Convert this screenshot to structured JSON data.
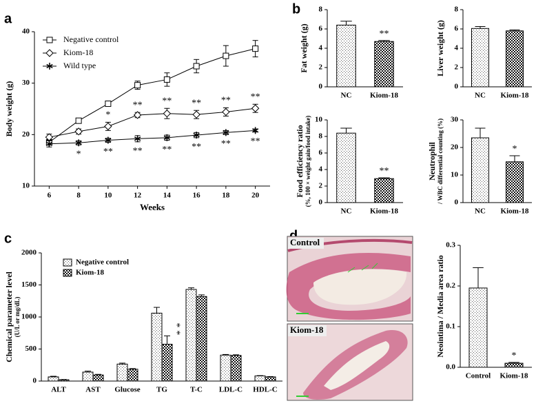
{
  "panel_labels": [
    "a",
    "b",
    "c",
    "d"
  ],
  "images": [
    {
      "label": "Control"
    },
    {
      "label": "Kiom-18"
    }
  ],
  "chart_data": [
    {
      "type": "line",
      "ylabel": [
        "Body weight (g)"
      ],
      "xlabel": "Weeks",
      "x": [
        6,
        8,
        10,
        12,
        14,
        16,
        18,
        20
      ],
      "xlim": [
        5,
        21
      ],
      "xticks": [
        6,
        8,
        10,
        12,
        14,
        16,
        18,
        20
      ],
      "ylim": [
        10,
        40
      ],
      "yticks": [
        10,
        20,
        30,
        40
      ],
      "legend": "upper left",
      "series": [
        {
          "name": "Negative control",
          "marker": "square",
          "color": "#000000",
          "values": [
            18.5,
            22.7,
            26,
            29.6,
            30.7,
            33.3,
            35.3,
            36.7
          ],
          "errors": [
            0.5,
            0.4,
            0.5,
            0.8,
            1.3,
            1.3,
            2,
            1.6
          ]
        },
        {
          "name": "Kiom-18",
          "marker": "diamond",
          "color": "#000000",
          "values": [
            19.5,
            20.6,
            21.6,
            23.8,
            24.1,
            23.9,
            24.4,
            25.1
          ],
          "errors": [
            0.6,
            0.5,
            0.8,
            0.5,
            1,
            0.8,
            0.8,
            0.8
          ],
          "significance": [
            null,
            null,
            "*",
            "**",
            "**",
            "**",
            "**",
            "**"
          ],
          "significance_position": "above"
        },
        {
          "name": "Wild type",
          "marker": "star",
          "color": "#000000",
          "values": [
            18.2,
            18.4,
            18.9,
            19.2,
            19.4,
            19.9,
            20.4,
            20.8
          ],
          "errors": [
            0.6,
            0.4,
            0.4,
            0.6,
            0.5,
            0.5,
            0.4,
            0.3
          ],
          "significance": [
            null,
            "*",
            "**",
            "**",
            "**",
            "**",
            "**",
            "**"
          ],
          "significance_position": "below"
        }
      ]
    },
    {
      "type": "bar",
      "ylabel": [
        "Fat weight (g)"
      ],
      "categories": [
        "NC",
        "Kiom-18"
      ],
      "values": [
        6.4,
        4.7
      ],
      "errors": [
        0.4,
        0.1
      ],
      "patterns": [
        "dots",
        "checker"
      ],
      "significance": [
        null,
        "**"
      ],
      "ylim": [
        0,
        8
      ],
      "yticks": [
        0,
        2,
        4,
        6,
        8
      ]
    },
    {
      "type": "bar",
      "ylabel": [
        "Liver weight (g)"
      ],
      "categories": [
        "NC",
        "Kiom-18"
      ],
      "values": [
        6.05,
        5.8
      ],
      "errors": [
        0.2,
        0.1
      ],
      "patterns": [
        "dots",
        "checker"
      ],
      "significance": [
        null,
        null
      ],
      "ylim": [
        0,
        8
      ],
      "yticks": [
        0,
        2,
        4,
        6,
        8
      ]
    },
    {
      "type": "bar",
      "ylabel": [
        "Food efficiency ratio",
        "(%, 100 × weight gain/food intake)"
      ],
      "categories": [
        "NC",
        "Kiom-18"
      ],
      "values": [
        8.4,
        2.9
      ],
      "errors": [
        0.6,
        0.1
      ],
      "patterns": [
        "dots",
        "checker"
      ],
      "significance": [
        null,
        "**"
      ],
      "ylim": [
        0,
        10
      ],
      "yticks": [
        0,
        2,
        4,
        6,
        8,
        10
      ]
    },
    {
      "type": "bar",
      "ylabel": [
        "Neutrophil",
        "/ WBC differential counting (%)"
      ],
      "categories": [
        "NC",
        "Kiom-18"
      ],
      "values": [
        23.5,
        14.8
      ],
      "errors": [
        3.5,
        2.2
      ],
      "patterns": [
        "dots",
        "checker"
      ],
      "significance": [
        null,
        "*"
      ],
      "ylim": [
        0,
        30
      ],
      "yticks": [
        0,
        10,
        20,
        30
      ]
    },
    {
      "type": "bar",
      "ylabel": [
        "Chemical parameter level",
        "(U/L or mg/dL)"
      ],
      "categories": [
        "ALT",
        "AST",
        "Glucose",
        "TG",
        "T-C",
        "LDL-C",
        "HDL-C"
      ],
      "legend": "upper left",
      "series": [
        {
          "name": "Negative control",
          "pattern": "dots",
          "values": [
            65,
            140,
            265,
            1060,
            1430,
            405,
            80
          ],
          "errors": [
            10,
            15,
            15,
            90,
            25,
            10,
            5
          ]
        },
        {
          "name": "Kiom-18",
          "pattern": "checker",
          "values": [
            20,
            95,
            185,
            575,
            1320,
            400,
            65
          ],
          "errors": [
            5,
            10,
            10,
            130,
            25,
            10,
            5
          ],
          "significance": [
            null,
            null,
            null,
            "**",
            null,
            null,
            null
          ]
        }
      ],
      "ylim": [
        0,
        2000
      ],
      "yticks": [
        0,
        500,
        1000,
        1500,
        2000
      ]
    },
    {
      "type": "bar",
      "ylabel": [
        "Neointima / Media area ratio"
      ],
      "categories": [
        "Control",
        "Kiom-18"
      ],
      "values": [
        0.195,
        0.01
      ],
      "errors": [
        0.05,
        0.002
      ],
      "patterns": [
        "dots",
        "checker"
      ],
      "significance": [
        null,
        "*"
      ],
      "ylim": [
        0,
        0.3
      ],
      "yticks": [
        {
          "value": 0,
          "label": "0.0"
        },
        0.1,
        0.2,
        0.3
      ]
    }
  ]
}
